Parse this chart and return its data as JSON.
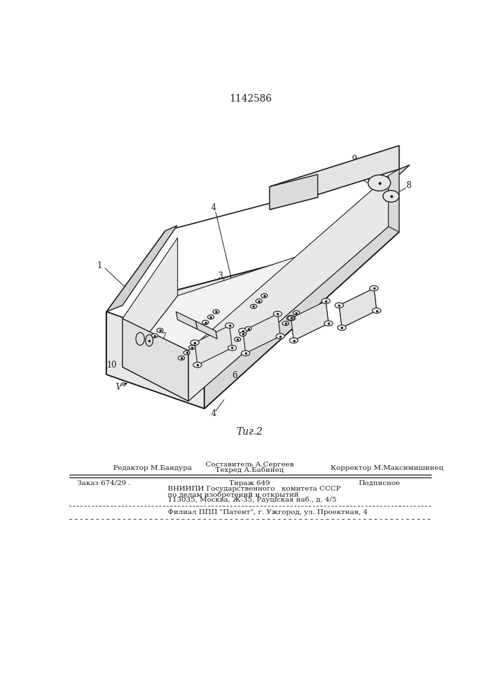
{
  "patent_number": "1142586",
  "fig_label": "Τиг.2",
  "bg": "#ffffff",
  "lc": "#1a1a1a",
  "footer": {
    "redaktor": "Редактор М.Бандура",
    "sostavitel": "Составитель А.Сергеев",
    "tehred": "Техред А.Бабинец",
    "korrektor": "Корректор М.Максимишинец",
    "zakaz": "Заказ 674/29 .",
    "tirazh": "Тираж 649",
    "podpisnoe": "Подписное",
    "vnipi1": "ВНИИПИ Государственного   комитета СССР",
    "vnipi2": "по делам изобретений и открытий",
    "vnipi3": "113035, Москва, Ж-35, Раушская наб., д. 4/5",
    "filial": "Филиал ППП \"Патент\", г. Ужгород, ул. Проектная, 4"
  }
}
